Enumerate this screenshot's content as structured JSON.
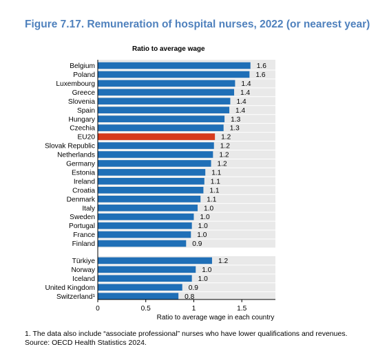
{
  "figure_title": "Figure 7.17. Remuneration of hospital nurses, 2022 (or nearest year)",
  "chart_data": {
    "type": "bar",
    "orientation": "horizontal",
    "title": "Ratio to average wage",
    "xlabel": "Ratio to average wage in each country",
    "xlim": [
      0,
      1.85
    ],
    "xticks": [
      0,
      0.5,
      1,
      1.5
    ],
    "xtick_labels": [
      "0",
      "0.5",
      "1",
      "1.5"
    ],
    "grid": false,
    "colors": {
      "default": "#1f6fb7",
      "highlight": "#d63a1c"
    },
    "groups": [
      {
        "categories": [
          "Belgium",
          "Poland",
          "Luxembourg",
          "Greece",
          "Slovenia",
          "Spain",
          "Hungary",
          "Czechia",
          "EU20",
          "Slovak Republic",
          "Netherlands",
          "Germany",
          "Estonia",
          "Ireland",
          "Croatia",
          "Denmark",
          "Italy",
          "Sweden",
          "Portugal",
          "France",
          "Finland"
        ],
        "values": [
          1.59,
          1.58,
          1.43,
          1.42,
          1.38,
          1.37,
          1.32,
          1.31,
          1.22,
          1.21,
          1.2,
          1.18,
          1.12,
          1.11,
          1.1,
          1.07,
          1.04,
          1.0,
          0.98,
          0.97,
          0.92
        ],
        "labels": [
          "1.6",
          "1.6",
          "1.4",
          "1.4",
          "1.4",
          "1.4",
          "1.3",
          "1.3",
          "1.2",
          "1.2",
          "1.2",
          "1.2",
          "1.1",
          "1.1",
          "1.1",
          "1.1",
          "1.0",
          "1.0",
          "1.0",
          "1.0",
          "0.9"
        ],
        "highlight": [
          "EU20"
        ]
      },
      {
        "categories": [
          "Türkiye",
          "Norway",
          "Iceland",
          "United Kingdom",
          "Switzerland¹"
        ],
        "values": [
          1.19,
          1.02,
          0.98,
          0.88,
          0.84
        ],
        "labels": [
          "1.2",
          "1.0",
          "1.0",
          "0.9",
          "0.8"
        ],
        "highlight": []
      }
    ]
  },
  "note": "1. The data also include “associate professional” nurses who have lower qualifications and revenues.",
  "source": "Source: OECD Health Statistics 2024."
}
